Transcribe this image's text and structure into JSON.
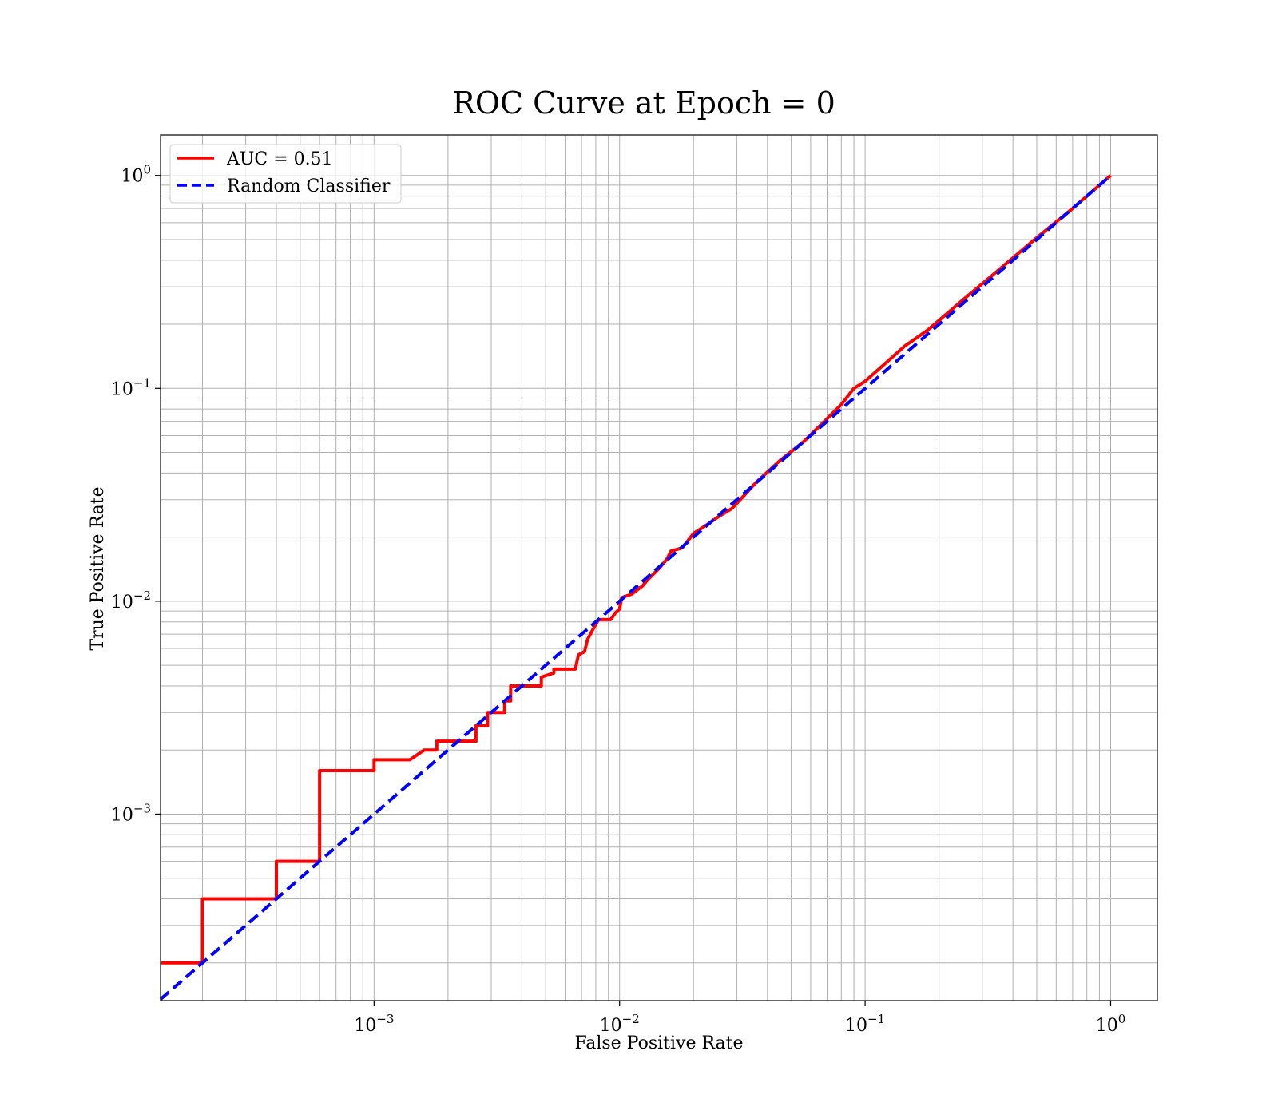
{
  "chart_data": {
    "type": "line",
    "title": "ROC Curve at Epoch = 0",
    "xlabel": "False Positive Rate",
    "ylabel": "True Positive Rate",
    "xscale": "log",
    "yscale": "log",
    "xlim": [
      0.000135,
      1.55
    ],
    "ylim": [
      0.000133,
      1.55
    ],
    "grid": "both major and minor",
    "legend_position": "upper-left",
    "x_ticks": [
      {
        "base": "10",
        "exp": "−3",
        "value": 0.001
      },
      {
        "base": "10",
        "exp": "−2",
        "value": 0.01
      },
      {
        "base": "10",
        "exp": "−1",
        "value": 0.1
      },
      {
        "base": "10",
        "exp": "0",
        "value": 1
      }
    ],
    "y_ticks": [
      {
        "base": "10",
        "exp": "−3",
        "value": 0.001
      },
      {
        "base": "10",
        "exp": "−2",
        "value": 0.01
      },
      {
        "base": "10",
        "exp": "−1",
        "value": 0.1
      },
      {
        "base": "10",
        "exp": "0",
        "value": 1
      }
    ],
    "series": [
      {
        "name": "AUC = 0.51",
        "color": "#ff0000",
        "style": "solid",
        "points": [
          [
            0.000135,
            0.0002
          ],
          [
            0.0002,
            0.0002
          ],
          [
            0.0002,
            0.0004
          ],
          [
            0.0004,
            0.0004
          ],
          [
            0.0004,
            0.0006
          ],
          [
            0.0006,
            0.0006
          ],
          [
            0.0006,
            0.0016
          ],
          [
            0.001,
            0.0016
          ],
          [
            0.001,
            0.0018
          ],
          [
            0.0014,
            0.0018
          ],
          [
            0.0016,
            0.002
          ],
          [
            0.0018,
            0.002
          ],
          [
            0.0018,
            0.0022
          ],
          [
            0.0026,
            0.0022
          ],
          [
            0.0026,
            0.0026
          ],
          [
            0.0029,
            0.0026
          ],
          [
            0.0029,
            0.003
          ],
          [
            0.0034,
            0.003
          ],
          [
            0.0034,
            0.0034
          ],
          [
            0.0036,
            0.0034
          ],
          [
            0.0036,
            0.004
          ],
          [
            0.0048,
            0.004
          ],
          [
            0.0048,
            0.0044
          ],
          [
            0.0054,
            0.0046
          ],
          [
            0.0054,
            0.0048
          ],
          [
            0.0066,
            0.0048
          ],
          [
            0.0068,
            0.0056
          ],
          [
            0.0072,
            0.0058
          ],
          [
            0.0074,
            0.0066
          ],
          [
            0.0078,
            0.0074
          ],
          [
            0.0082,
            0.0082
          ],
          [
            0.0092,
            0.0082
          ],
          [
            0.0096,
            0.0088
          ],
          [
            0.01,
            0.0092
          ],
          [
            0.0102,
            0.0104
          ],
          [
            0.0112,
            0.0108
          ],
          [
            0.0124,
            0.0118
          ],
          [
            0.013,
            0.0126
          ],
          [
            0.0146,
            0.0144
          ],
          [
            0.0156,
            0.0158
          ],
          [
            0.0162,
            0.0172
          ],
          [
            0.018,
            0.0178
          ],
          [
            0.02,
            0.0208
          ],
          [
            0.0226,
            0.0228
          ],
          [
            0.0256,
            0.0252
          ],
          [
            0.0286,
            0.0272
          ],
          [
            0.032,
            0.0312
          ],
          [
            0.036,
            0.0362
          ],
          [
            0.045,
            0.0458
          ],
          [
            0.056,
            0.056
          ],
          [
            0.07,
            0.072
          ],
          [
            0.08,
            0.084
          ],
          [
            0.09,
            0.1
          ],
          [
            0.1,
            0.108
          ],
          [
            0.12,
            0.13
          ],
          [
            0.145,
            0.158
          ],
          [
            0.18,
            0.188
          ],
          [
            0.25,
            0.26
          ],
          [
            0.35,
            0.36
          ],
          [
            0.5,
            0.51
          ],
          [
            0.7,
            0.7
          ],
          [
            1.0,
            1.0
          ]
        ]
      },
      {
        "name": "Random Classifier",
        "color": "#0000ff",
        "style": "dashed",
        "points": [
          [
            0.000135,
            0.000135
          ],
          [
            1.0,
            1.0
          ]
        ]
      }
    ]
  }
}
